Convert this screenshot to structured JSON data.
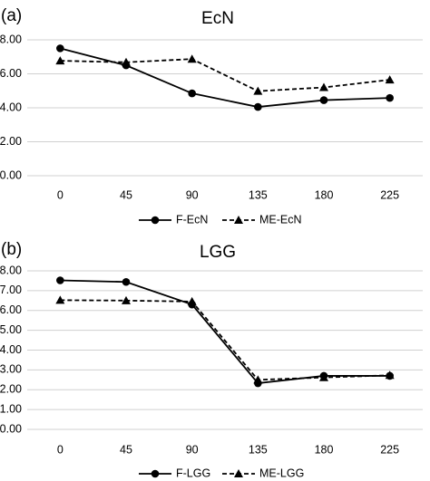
{
  "chart_data": [
    {
      "type": "line",
      "panel_label": "(a)",
      "title": "EcN",
      "categories": [
        "0",
        "45",
        "90",
        "135",
        "180",
        "225"
      ],
      "y_ticks": [
        "0.00",
        "2.00",
        "4.00",
        "6.00",
        "8.00"
      ],
      "ylim": [
        0,
        8
      ],
      "grid": true,
      "legend_position": "bottom",
      "series": [
        {
          "name": "F-EcN",
          "values": [
            7.5,
            6.5,
            4.85,
            4.05,
            4.45,
            4.58
          ],
          "line": "solid",
          "marker": "circle"
        },
        {
          "name": "ME-EcN",
          "values": [
            6.77,
            6.68,
            6.87,
            4.98,
            5.2,
            5.65
          ],
          "line": "dashed",
          "marker": "triangle"
        }
      ]
    },
    {
      "type": "line",
      "panel_label": "(b)",
      "title": "LGG",
      "categories": [
        "0",
        "45",
        "90",
        "135",
        "180",
        "225"
      ],
      "y_ticks": [
        "0.00",
        "1.00",
        "2.00",
        "3.00",
        "4.00",
        "5.00",
        "6.00",
        "7.00",
        "8.00"
      ],
      "ylim": [
        0,
        8
      ],
      "grid": true,
      "legend_position": "bottom",
      "series": [
        {
          "name": "F-LGG",
          "values": [
            7.52,
            7.44,
            6.3,
            2.33,
            2.7,
            2.7
          ],
          "line": "solid",
          "marker": "circle"
        },
        {
          "name": "ME-LGG",
          "values": [
            6.52,
            6.5,
            6.45,
            2.5,
            2.62,
            2.73
          ],
          "line": "dashed",
          "marker": "triangle"
        }
      ]
    }
  ]
}
